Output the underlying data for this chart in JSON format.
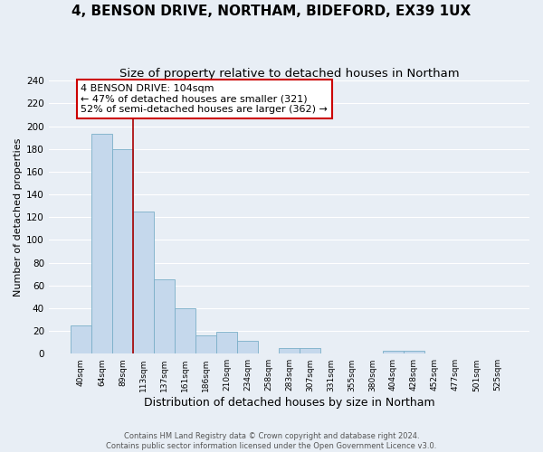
{
  "title": "4, BENSON DRIVE, NORTHAM, BIDEFORD, EX39 1UX",
  "subtitle": "Size of property relative to detached houses in Northam",
  "xlabel": "Distribution of detached houses by size in Northam",
  "ylabel": "Number of detached properties",
  "bin_labels": [
    "40sqm",
    "64sqm",
    "89sqm",
    "113sqm",
    "137sqm",
    "161sqm",
    "186sqm",
    "210sqm",
    "234sqm",
    "258sqm",
    "283sqm",
    "307sqm",
    "331sqm",
    "355sqm",
    "380sqm",
    "404sqm",
    "428sqm",
    "452sqm",
    "477sqm",
    "501sqm",
    "525sqm"
  ],
  "bar_heights": [
    25,
    193,
    180,
    125,
    65,
    40,
    16,
    19,
    11,
    0,
    5,
    5,
    0,
    0,
    0,
    3,
    3,
    0,
    0,
    0,
    0
  ],
  "bar_color": "#c5d8ec",
  "bar_edge_color": "#7aafc8",
  "vline_color": "#aa0000",
  "annotation_box_text": "4 BENSON DRIVE: 104sqm\n← 47% of detached houses are smaller (321)\n52% of semi-detached houses are larger (362) →",
  "annotation_box_color": "#cc0000",
  "ylim": [
    0,
    240
  ],
  "yticks": [
    0,
    20,
    40,
    60,
    80,
    100,
    120,
    140,
    160,
    180,
    200,
    220,
    240
  ],
  "footer_text": "Contains HM Land Registry data © Crown copyright and database right 2024.\nContains public sector information licensed under the Open Government Licence v3.0.",
  "background_color": "#e8eef5",
  "plot_bg_color": "#e8eef5",
  "grid_color": "#ffffff",
  "title_fontsize": 11,
  "subtitle_fontsize": 9.5,
  "annotation_fontsize": 8.0,
  "ylabel_fontsize": 8.0,
  "xlabel_fontsize": 9.0
}
